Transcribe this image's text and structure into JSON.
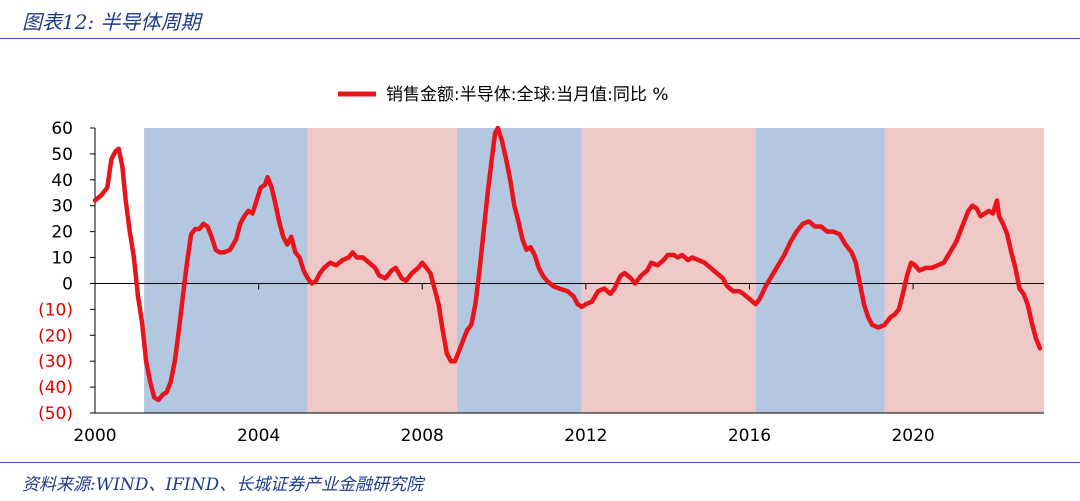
{
  "figure_title": "图表12:  半导体周期",
  "source": "资料来源:WIND、IFIND、长城证券产业金融研究院",
  "chart_data": {
    "type": "line",
    "title": "",
    "legend_position": "top-center",
    "x_range": [
      2000,
      2023.2
    ],
    "ylim": [
      -50,
      60
    ],
    "x_ticks": [
      2000,
      2004,
      2008,
      2012,
      2016,
      2020
    ],
    "x_tick_labels": [
      "2000",
      "2004",
      "2008",
      "2012",
      "2016",
      "2020"
    ],
    "y_ticks": [
      60,
      50,
      40,
      30,
      20,
      10,
      0,
      -10,
      -20,
      -30,
      -40,
      -50
    ],
    "y_tick_labels": [
      "60",
      "50",
      "40",
      "30",
      "20",
      "10",
      "0",
      "(10)",
      "(20)",
      "(30)",
      "(40)",
      "(50)"
    ],
    "negative_tick_color": "#e00000",
    "shaded_periods": [
      {
        "start": 2001.2,
        "end": 2005.2,
        "color": "#b4c7e0"
      },
      {
        "start": 2005.2,
        "end": 2008.85,
        "color": "#efc8c8"
      },
      {
        "start": 2008.85,
        "end": 2011.9,
        "color": "#b4c7e0"
      },
      {
        "start": 2011.9,
        "end": 2016.15,
        "color": "#efc8c8"
      },
      {
        "start": 2016.15,
        "end": 2019.3,
        "color": "#b4c7e0"
      },
      {
        "start": 2019.3,
        "end": 2023.2,
        "color": "#efc8c8"
      }
    ],
    "series": [
      {
        "name": "销售金额:半导体:全球:当月值:同比 %",
        "color": "#e8141c",
        "points": [
          [
            2000.0,
            32
          ],
          [
            2000.15,
            34
          ],
          [
            2000.3,
            37
          ],
          [
            2000.4,
            48
          ],
          [
            2000.5,
            51
          ],
          [
            2000.58,
            52
          ],
          [
            2000.67,
            45
          ],
          [
            2000.75,
            32
          ],
          [
            2000.85,
            20
          ],
          [
            2000.95,
            10
          ],
          [
            2001.05,
            -5
          ],
          [
            2001.15,
            -15
          ],
          [
            2001.25,
            -30
          ],
          [
            2001.35,
            -38
          ],
          [
            2001.45,
            -44
          ],
          [
            2001.55,
            -45
          ],
          [
            2001.65,
            -43
          ],
          [
            2001.75,
            -42
          ],
          [
            2001.85,
            -38
          ],
          [
            2001.95,
            -30
          ],
          [
            2002.05,
            -18
          ],
          [
            2002.15,
            -5
          ],
          [
            2002.25,
            8
          ],
          [
            2002.35,
            19
          ],
          [
            2002.45,
            21
          ],
          [
            2002.55,
            21
          ],
          [
            2002.65,
            23
          ],
          [
            2002.75,
            22
          ],
          [
            2002.85,
            18
          ],
          [
            2002.95,
            13
          ],
          [
            2003.05,
            12
          ],
          [
            2003.15,
            12
          ],
          [
            2003.3,
            13
          ],
          [
            2003.45,
            17
          ],
          [
            2003.55,
            23
          ],
          [
            2003.65,
            26
          ],
          [
            2003.75,
            28
          ],
          [
            2003.85,
            27
          ],
          [
            2003.95,
            32
          ],
          [
            2004.05,
            37
          ],
          [
            2004.15,
            38
          ],
          [
            2004.22,
            41
          ],
          [
            2004.32,
            37
          ],
          [
            2004.42,
            30
          ],
          [
            2004.5,
            24
          ],
          [
            2004.6,
            18
          ],
          [
            2004.7,
            15
          ],
          [
            2004.8,
            18
          ],
          [
            2004.9,
            12
          ],
          [
            2005.0,
            10
          ],
          [
            2005.1,
            5
          ],
          [
            2005.2,
            2
          ],
          [
            2005.3,
            0
          ],
          [
            2005.4,
            1
          ],
          [
            2005.5,
            4
          ],
          [
            2005.6,
            6
          ],
          [
            2005.75,
            8
          ],
          [
            2005.9,
            7
          ],
          [
            2006.05,
            9
          ],
          [
            2006.2,
            10
          ],
          [
            2006.3,
            12
          ],
          [
            2006.4,
            10
          ],
          [
            2006.55,
            10
          ],
          [
            2006.7,
            8
          ],
          [
            2006.85,
            6
          ],
          [
            2006.95,
            3
          ],
          [
            2007.1,
            2
          ],
          [
            2007.25,
            5
          ],
          [
            2007.35,
            6
          ],
          [
            2007.5,
            2
          ],
          [
            2007.6,
            1
          ],
          [
            2007.75,
            4
          ],
          [
            2007.9,
            6
          ],
          [
            2008.0,
            8
          ],
          [
            2008.1,
            6
          ],
          [
            2008.2,
            4
          ],
          [
            2008.3,
            -2
          ],
          [
            2008.4,
            -8
          ],
          [
            2008.5,
            -18
          ],
          [
            2008.6,
            -27
          ],
          [
            2008.7,
            -30
          ],
          [
            2008.8,
            -30
          ],
          [
            2008.9,
            -26
          ],
          [
            2009.0,
            -22
          ],
          [
            2009.1,
            -18
          ],
          [
            2009.2,
            -16
          ],
          [
            2009.3,
            -8
          ],
          [
            2009.4,
            5
          ],
          [
            2009.5,
            20
          ],
          [
            2009.6,
            35
          ],
          [
            2009.7,
            48
          ],
          [
            2009.78,
            58
          ],
          [
            2009.85,
            60
          ],
          [
            2009.95,
            55
          ],
          [
            2010.05,
            48
          ],
          [
            2010.15,
            40
          ],
          [
            2010.25,
            30
          ],
          [
            2010.35,
            24
          ],
          [
            2010.45,
            17
          ],
          [
            2010.55,
            13
          ],
          [
            2010.65,
            14
          ],
          [
            2010.75,
            11
          ],
          [
            2010.85,
            6
          ],
          [
            2010.95,
            3
          ],
          [
            2011.05,
            1
          ],
          [
            2011.2,
            -1
          ],
          [
            2011.35,
            -2
          ],
          [
            2011.55,
            -3
          ],
          [
            2011.7,
            -5
          ],
          [
            2011.8,
            -8
          ],
          [
            2011.9,
            -9
          ],
          [
            2012.0,
            -8
          ],
          [
            2012.15,
            -7
          ],
          [
            2012.3,
            -3
          ],
          [
            2012.45,
            -2
          ],
          [
            2012.6,
            -4
          ],
          [
            2012.7,
            -2
          ],
          [
            2012.85,
            3
          ],
          [
            2012.95,
            4
          ],
          [
            2013.1,
            2
          ],
          [
            2013.2,
            0
          ],
          [
            2013.35,
            3
          ],
          [
            2013.5,
            5
          ],
          [
            2013.6,
            8
          ],
          [
            2013.75,
            7
          ],
          [
            2013.9,
            9
          ],
          [
            2014.0,
            11
          ],
          [
            2014.15,
            11
          ],
          [
            2014.25,
            10
          ],
          [
            2014.35,
            11
          ],
          [
            2014.5,
            9
          ],
          [
            2014.6,
            10
          ],
          [
            2014.75,
            9
          ],
          [
            2014.9,
            8
          ],
          [
            2015.05,
            6
          ],
          [
            2015.2,
            4
          ],
          [
            2015.35,
            2
          ],
          [
            2015.45,
            -1
          ],
          [
            2015.6,
            -3
          ],
          [
            2015.75,
            -3
          ],
          [
            2015.85,
            -4
          ],
          [
            2016.0,
            -6
          ],
          [
            2016.15,
            -8
          ],
          [
            2016.25,
            -6
          ],
          [
            2016.4,
            -1
          ],
          [
            2016.55,
            3
          ],
          [
            2016.7,
            7
          ],
          [
            2016.85,
            11
          ],
          [
            2017.0,
            16
          ],
          [
            2017.15,
            20
          ],
          [
            2017.3,
            23
          ],
          [
            2017.45,
            24
          ],
          [
            2017.6,
            22
          ],
          [
            2017.75,
            22
          ],
          [
            2017.9,
            20
          ],
          [
            2018.05,
            20
          ],
          [
            2018.2,
            19
          ],
          [
            2018.35,
            15
          ],
          [
            2018.5,
            12
          ],
          [
            2018.6,
            8
          ],
          [
            2018.7,
            0
          ],
          [
            2018.8,
            -8
          ],
          [
            2018.9,
            -13
          ],
          [
            2019.0,
            -16
          ],
          [
            2019.15,
            -17
          ],
          [
            2019.3,
            -16
          ],
          [
            2019.45,
            -13
          ],
          [
            2019.55,
            -12
          ],
          [
            2019.65,
            -10
          ],
          [
            2019.75,
            -4
          ],
          [
            2019.85,
            3
          ],
          [
            2019.95,
            8
          ],
          [
            2020.05,
            7
          ],
          [
            2020.15,
            5
          ],
          [
            2020.3,
            6
          ],
          [
            2020.45,
            6
          ],
          [
            2020.6,
            7
          ],
          [
            2020.75,
            8
          ],
          [
            2020.9,
            12
          ],
          [
            2021.05,
            16
          ],
          [
            2021.2,
            22
          ],
          [
            2021.35,
            28
          ],
          [
            2021.45,
            30
          ],
          [
            2021.55,
            29
          ],
          [
            2021.65,
            26
          ],
          [
            2021.75,
            27
          ],
          [
            2021.85,
            28
          ],
          [
            2021.95,
            27
          ],
          [
            2022.05,
            32
          ],
          [
            2022.1,
            26
          ],
          [
            2022.2,
            23
          ],
          [
            2022.3,
            19
          ],
          [
            2022.4,
            12
          ],
          [
            2022.5,
            6
          ],
          [
            2022.6,
            -2
          ],
          [
            2022.7,
            -4
          ],
          [
            2022.8,
            -8
          ],
          [
            2022.9,
            -15
          ],
          [
            2023.0,
            -21
          ],
          [
            2023.1,
            -25
          ]
        ]
      }
    ]
  }
}
